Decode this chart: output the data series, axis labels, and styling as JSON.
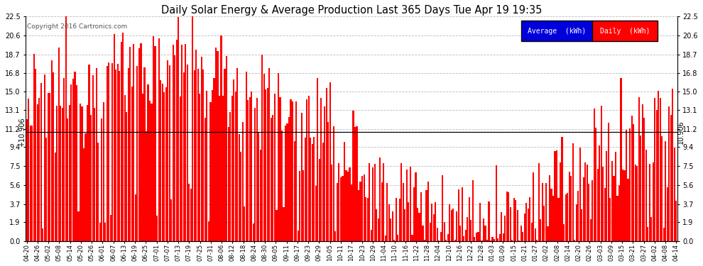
{
  "title": "Daily Solar Energy & Average Production Last 365 Days Tue Apr 19 19:35",
  "copyright": "Copyright 2016 Cartronics.com",
  "average_value": 10.906,
  "y_ticks": [
    0.0,
    1.9,
    3.7,
    5.6,
    7.5,
    9.4,
    11.2,
    13.1,
    15.0,
    16.8,
    18.7,
    20.6,
    22.5
  ],
  "ylim": [
    0.0,
    22.5
  ],
  "bar_color": "#ff0000",
  "avg_line_color": "#000000",
  "background_color": "#ffffff",
  "grid_color": "#bbbbbb",
  "legend_avg_bg": "#0000dd",
  "legend_daily_bg": "#ff0000",
  "x_labels": [
    "04-20",
    "04-26",
    "05-02",
    "05-08",
    "05-14",
    "05-20",
    "05-26",
    "06-01",
    "06-07",
    "06-13",
    "06-19",
    "06-25",
    "07-01",
    "07-07",
    "07-13",
    "07-19",
    "07-25",
    "07-31",
    "08-06",
    "08-12",
    "08-18",
    "08-24",
    "08-30",
    "09-05",
    "09-11",
    "09-17",
    "09-23",
    "09-29",
    "10-05",
    "10-11",
    "10-17",
    "10-23",
    "10-29",
    "11-04",
    "11-10",
    "11-16",
    "11-22",
    "11-28",
    "12-04",
    "12-10",
    "12-16",
    "12-22",
    "12-28",
    "01-03",
    "01-09",
    "01-15",
    "01-21",
    "01-27",
    "02-02",
    "02-08",
    "02-14",
    "02-20",
    "02-26",
    "03-03",
    "03-09",
    "03-15",
    "03-21",
    "03-27",
    "04-02",
    "04-08",
    "04-14"
  ],
  "num_bars": 365
}
